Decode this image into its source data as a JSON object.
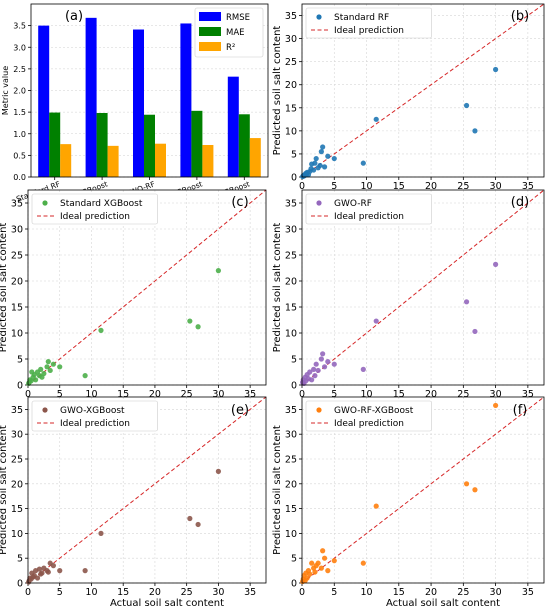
{
  "chart_data": [
    {
      "type": "bar",
      "panel_label": "(a)",
      "categories": [
        "Standard RF",
        "Standard XGBoost",
        "GWO-RF",
        "GWO-XGBoost",
        "GWO-RF-XGBoost"
      ],
      "series": [
        {
          "name": "RMSE",
          "color": "#0000ff",
          "values": [
            3.5,
            3.68,
            3.41,
            3.55,
            2.32
          ]
        },
        {
          "name": "MAE",
          "color": "#008000",
          "values": [
            1.49,
            1.48,
            1.44,
            1.53,
            1.45
          ]
        },
        {
          "name": "R²",
          "color": "#ffa500",
          "values": [
            0.76,
            0.72,
            0.77,
            0.74,
            0.9
          ]
        }
      ],
      "ylabel": "Metric value",
      "ylim": [
        0,
        4.0
      ],
      "yticks": [
        "0.0",
        "0.5",
        "1.0",
        "1.5",
        "2.0",
        "2.5",
        "3.0",
        "3.5"
      ],
      "grid": true,
      "legend": "top-right"
    },
    {
      "type": "scatter",
      "panel_label": "(b)",
      "series": [
        {
          "name": "Standard RF",
          "color": "#1f77b4",
          "x": [
            0.1,
            0.2,
            0.3,
            0.4,
            0.5,
            0.6,
            0.7,
            0.8,
            1.0,
            1.2,
            1.4,
            1.5,
            1.8,
            2.0,
            2.2,
            2.5,
            2.8,
            3.0,
            3.2,
            3.5,
            4.0,
            5.0,
            9.5,
            11.5,
            25.5,
            26.8,
            30.0
          ],
          "y": [
            0.1,
            0.3,
            0.2,
            0.5,
            0.4,
            0.8,
            0.6,
            1.0,
            0.5,
            1.2,
            1.8,
            2.8,
            1.5,
            3.0,
            4.0,
            2.0,
            2.5,
            5.5,
            6.5,
            2.2,
            4.5,
            4.0,
            3.0,
            12.5,
            15.5,
            10.0,
            23.3
          ]
        }
      ],
      "ideal_label": "Ideal prediction",
      "xlabel": "Actual soil salt content",
      "ylabel": "Predicted soil salt content",
      "xlim": [
        0,
        37.5
      ],
      "ylim": [
        0,
        37.5
      ],
      "ticks": [
        "0",
        "5",
        "10",
        "15",
        "20",
        "25",
        "30",
        "35"
      ],
      "grid": true,
      "legend": "top-left"
    },
    {
      "type": "scatter",
      "panel_label": "(c)",
      "series": [
        {
          "name": "Standard XGBoost",
          "color": "#4daf4a",
          "x": [
            0.1,
            0.2,
            0.3,
            0.5,
            0.6,
            0.8,
            1.0,
            1.2,
            1.5,
            1.8,
            2.0,
            2.2,
            2.5,
            3.0,
            3.2,
            3.5,
            4.0,
            5.0,
            9.0,
            11.5,
            25.5,
            26.8,
            30.0
          ],
          "y": [
            0.3,
            0.5,
            1.0,
            0.8,
            2.5,
            1.5,
            2.0,
            1.0,
            2.5,
            1.8,
            3.0,
            1.5,
            2.2,
            3.5,
            4.5,
            2.8,
            4.0,
            3.5,
            1.8,
            10.5,
            12.3,
            11.2,
            22.0
          ]
        }
      ],
      "ideal_label": "Ideal prediction",
      "xlabel": "Actual soil salt content",
      "ylabel": "Predicted soil salt content",
      "xlim": [
        0,
        37.5
      ],
      "ylim": [
        0,
        37.5
      ],
      "ticks": [
        "0",
        "5",
        "10",
        "15",
        "20",
        "25",
        "30",
        "35"
      ],
      "grid": true,
      "legend": "top-left"
    },
    {
      "type": "scatter",
      "panel_label": "(d)",
      "series": [
        {
          "name": "GWO-RF",
          "color": "#9467bd",
          "x": [
            0.1,
            0.2,
            0.3,
            0.5,
            0.6,
            0.8,
            1.0,
            1.2,
            1.5,
            1.8,
            2.0,
            2.2,
            2.5,
            3.0,
            3.2,
            3.5,
            4.0,
            5.0,
            9.5,
            11.5,
            25.5,
            26.8,
            30.0
          ],
          "y": [
            0.5,
            1.0,
            0.3,
            1.5,
            0.8,
            2.0,
            1.2,
            2.5,
            1.0,
            3.0,
            1.8,
            4.0,
            2.8,
            5.0,
            6.0,
            3.5,
            4.5,
            4.0,
            3.0,
            12.3,
            16.0,
            10.3,
            23.2
          ]
        }
      ],
      "ideal_label": "Ideal prediction",
      "xlabel": "Actual soil salt content",
      "ylabel": "Predicted soil salt content",
      "xlim": [
        0,
        37.5
      ],
      "ylim": [
        0,
        37.5
      ],
      "ticks": [
        "0",
        "5",
        "10",
        "15",
        "20",
        "25",
        "30",
        "35"
      ],
      "grid": true,
      "legend": "top-left"
    },
    {
      "type": "scatter",
      "panel_label": "(e)",
      "series": [
        {
          "name": "GWO-XGBoost",
          "color": "#8c564b",
          "x": [
            0.1,
            0.2,
            0.3,
            0.5,
            0.6,
            0.8,
            1.0,
            1.2,
            1.5,
            1.8,
            2.0,
            2.2,
            2.5,
            3.0,
            3.2,
            3.5,
            4.0,
            5.0,
            9.0,
            11.5,
            25.5,
            26.8,
            30.0
          ],
          "y": [
            0.2,
            0.5,
            1.0,
            0.8,
            2.0,
            1.2,
            1.5,
            2.5,
            1.0,
            2.8,
            1.8,
            2.0,
            3.0,
            2.5,
            2.2,
            4.0,
            3.5,
            2.5,
            2.5,
            10.0,
            13.0,
            11.8,
            22.5
          ]
        }
      ],
      "ideal_label": "Ideal prediction",
      "xlabel": "Actual soil salt content",
      "ylabel": "Predicted soil salt content",
      "xlim": [
        0,
        37.5
      ],
      "ylim": [
        0,
        37.5
      ],
      "ticks": [
        "0",
        "5",
        "10",
        "15",
        "20",
        "25",
        "30",
        "35"
      ],
      "grid": true,
      "legend": "top-left"
    },
    {
      "type": "scatter",
      "panel_label": "(f)",
      "series": [
        {
          "name": "GWO-RF-XGBoost",
          "color": "#ff7f0e",
          "x": [
            0.1,
            0.2,
            0.3,
            0.5,
            0.6,
            0.8,
            1.0,
            1.2,
            1.5,
            1.8,
            2.0,
            2.2,
            2.5,
            3.0,
            3.2,
            3.5,
            4.0,
            5.0,
            9.5,
            11.5,
            25.5,
            26.8,
            30.0
          ],
          "y": [
            0.3,
            0.8,
            1.5,
            0.5,
            2.0,
            1.0,
            2.5,
            1.8,
            4.0,
            3.0,
            2.2,
            3.5,
            4.0,
            3.0,
            6.5,
            5.0,
            2.5,
            4.5,
            4.0,
            15.5,
            20.0,
            18.8,
            35.8
          ]
        }
      ],
      "ideal_label": "Ideal prediction",
      "xlabel": "Actual soil salt content",
      "ylabel": "Predicted soil salt content",
      "xlim": [
        0,
        37.5
      ],
      "ylim": [
        0,
        37.5
      ],
      "ticks": [
        "0",
        "5",
        "10",
        "15",
        "20",
        "25",
        "30",
        "35"
      ],
      "grid": true,
      "legend": "top-left"
    }
  ]
}
